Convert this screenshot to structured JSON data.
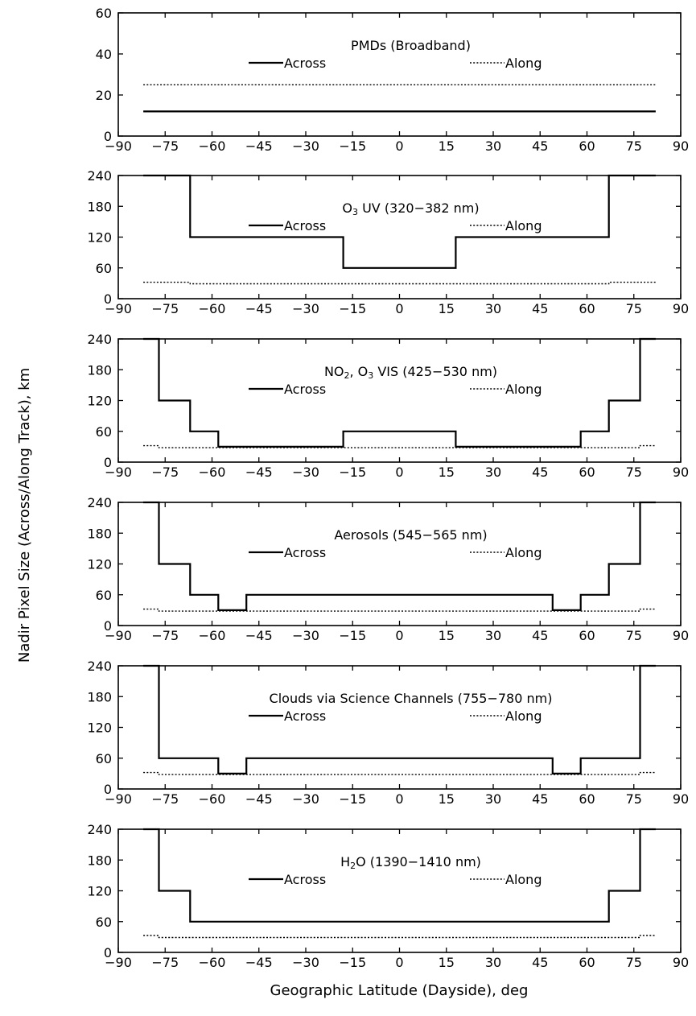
{
  "chart_data": {
    "type": "line",
    "xlabel": "Geographic Latitude (Dayside), deg",
    "ylabel": "Nadir Pixel Size (Across/Along Track), km",
    "xlim": [
      -90,
      90
    ],
    "xticks": [
      "-90",
      "-75",
      "-60",
      "-45",
      "-30",
      "-15",
      "0",
      "15",
      "30",
      "45",
      "60",
      "75",
      "90"
    ],
    "legend": {
      "across": "Across",
      "along": "Along",
      "placement": "top"
    },
    "grid": false,
    "panels": [
      {
        "title_parts": [
          {
            "t": "PMDs (Broadband)"
          }
        ],
        "ylim": [
          0,
          60
        ],
        "yticks": [
          "0",
          "20",
          "40",
          "60"
        ],
        "series": [
          {
            "name": "Across",
            "style": "solid",
            "x": [
              -82,
              82
            ],
            "y": [
              12,
              12
            ]
          },
          {
            "name": "Along",
            "style": "dotted",
            "x": [
              -82,
              82
            ],
            "y": [
              25,
              25
            ]
          }
        ]
      },
      {
        "title_parts": [
          {
            "t": "O"
          },
          {
            "t": "3",
            "sub": true
          },
          {
            "t": " UV (320-382 nm)"
          }
        ],
        "ylim": [
          0,
          240
        ],
        "yticks": [
          "0",
          "60",
          "120",
          "180",
          "240"
        ],
        "series": [
          {
            "name": "Across",
            "style": "solid",
            "x": [
              -82,
              -67,
              -67,
              -18,
              -18,
              18,
              18,
              67,
              67,
              82
            ],
            "y": [
              240,
              240,
              120,
              120,
              60,
              60,
              120,
              120,
              240,
              240
            ]
          },
          {
            "name": "Along",
            "style": "dotted",
            "x": [
              -82,
              -67,
              -67,
              67,
              67,
              82
            ],
            "y": [
              32,
              32,
              29,
              29,
              32,
              32
            ]
          }
        ]
      },
      {
        "title_parts": [
          {
            "t": "NO"
          },
          {
            "t": "2",
            "sub": true
          },
          {
            "t": ", O"
          },
          {
            "t": "3",
            "sub": true
          },
          {
            "t": " VIS (425-530 nm)"
          }
        ],
        "ylim": [
          0,
          240
        ],
        "yticks": [
          "0",
          "60",
          "120",
          "180",
          "240"
        ],
        "series": [
          {
            "name": "Across",
            "style": "solid",
            "x": [
              -82,
              -77,
              -77,
              -67,
              -67,
              -58,
              -58,
              -18,
              -18,
              18,
              18,
              58,
              58,
              67,
              67,
              77,
              77,
              82
            ],
            "y": [
              240,
              240,
              120,
              120,
              60,
              60,
              30,
              30,
              60,
              60,
              30,
              30,
              60,
              60,
              120,
              120,
              240,
              240
            ]
          },
          {
            "name": "Along",
            "style": "dotted",
            "x": [
              -82,
              -77,
              -77,
              77,
              77,
              82
            ],
            "y": [
              32,
              32,
              28,
              28,
              32,
              32
            ]
          }
        ]
      },
      {
        "title_parts": [
          {
            "t": "Aerosols (545-565 nm)"
          }
        ],
        "ylim": [
          0,
          240
        ],
        "yticks": [
          "0",
          "60",
          "120",
          "180",
          "240"
        ],
        "series": [
          {
            "name": "Across",
            "style": "solid",
            "x": [
              -82,
              -77,
              -77,
              -67,
              -67,
              -58,
              -58,
              -49,
              -49,
              49,
              49,
              58,
              58,
              67,
              67,
              77,
              77,
              82
            ],
            "y": [
              240,
              240,
              120,
              120,
              60,
              60,
              30,
              30,
              60,
              60,
              30,
              30,
              60,
              60,
              120,
              120,
              240,
              240
            ]
          },
          {
            "name": "Along",
            "style": "dotted",
            "x": [
              -82,
              -77,
              -77,
              77,
              77,
              82
            ],
            "y": [
              32,
              32,
              28,
              28,
              32,
              32
            ]
          }
        ]
      },
      {
        "title_parts": [
          {
            "t": "Clouds via Science Channels (755-780 nm)"
          }
        ],
        "ylim": [
          0,
          240
        ],
        "yticks": [
          "0",
          "60",
          "120",
          "180",
          "240"
        ],
        "series": [
          {
            "name": "Across",
            "style": "solid",
            "x": [
              -82,
              -77,
              -77,
              -58,
              -58,
              -49,
              -49,
              49,
              49,
              58,
              58,
              77,
              77,
              82
            ],
            "y": [
              240,
              240,
              60,
              60,
              30,
              30,
              60,
              60,
              30,
              30,
              60,
              60,
              240,
              240
            ]
          },
          {
            "name": "Along",
            "style": "dotted",
            "x": [
              -82,
              -77,
              -77,
              77,
              77,
              82
            ],
            "y": [
              32,
              32,
              28,
              28,
              32,
              32
            ]
          }
        ]
      },
      {
        "title_parts": [
          {
            "t": "H"
          },
          {
            "t": "2",
            "sub": true
          },
          {
            "t": "O (1390-1410 nm)"
          }
        ],
        "ylim": [
          0,
          240
        ],
        "yticks": [
          "0",
          "60",
          "120",
          "180",
          "240"
        ],
        "series": [
          {
            "name": "Across",
            "style": "solid",
            "x": [
              -82,
              -77,
              -77,
              -67,
              -67,
              67,
              67,
              77,
              77,
              82
            ],
            "y": [
              240,
              240,
              120,
              120,
              60,
              60,
              120,
              120,
              240,
              240
            ]
          },
          {
            "name": "Along",
            "style": "dotted",
            "x": [
              -82,
              -77,
              -77,
              77,
              77,
              82
            ],
            "y": [
              33,
              33,
              29,
              29,
              33,
              33
            ]
          }
        ]
      }
    ]
  }
}
